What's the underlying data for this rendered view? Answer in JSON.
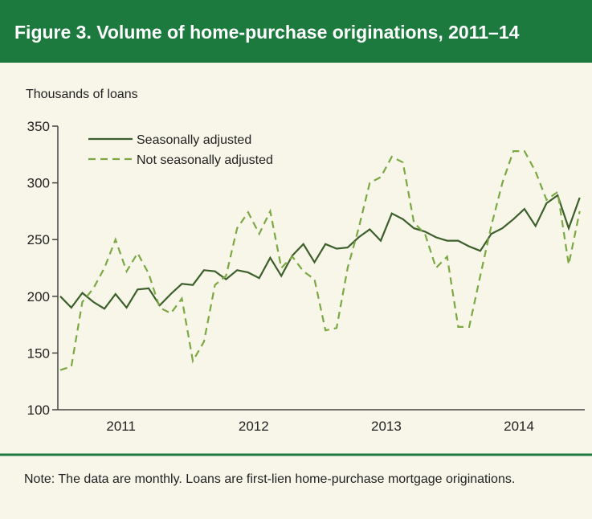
{
  "chart_data": {
    "type": "line",
    "title": "Figure 3. Volume of home-purchase originations, 2011–14",
    "y_axis_label": "Thousands of loans",
    "note": "Note: The data are monthly. Loans are first-lien home-purchase mortgage originations.",
    "categories": [
      null,
      null,
      null,
      null,
      null,
      null,
      "2011",
      null,
      null,
      null,
      null,
      null,
      null,
      null,
      null,
      null,
      null,
      null,
      "2012",
      null,
      null,
      null,
      null,
      null,
      null,
      null,
      null,
      null,
      null,
      null,
      "2013",
      null,
      null,
      null,
      null,
      null,
      null,
      null,
      null,
      null,
      null,
      null,
      "2014",
      null,
      null,
      null,
      null,
      null
    ],
    "series": [
      {
        "name": "Seasonally adjusted",
        "color": "#3d5f2c",
        "dashed": false,
        "values": [
          200,
          190,
          203,
          195,
          189,
          202,
          190,
          206,
          207,
          192,
          202,
          211,
          210,
          223,
          222,
          215,
          223,
          221,
          216,
          234,
          218,
          236,
          246,
          230,
          246,
          242,
          243,
          252,
          259,
          249,
          273,
          268,
          260,
          257,
          252,
          249,
          249,
          244,
          240,
          255,
          260,
          268,
          277,
          262,
          282,
          289,
          260,
          287
        ]
      },
      {
        "name": "Not seasonally adjusted",
        "color": "#7ba843",
        "dashed": true,
        "values": [
          135,
          138,
          195,
          207,
          225,
          250,
          222,
          238,
          220,
          190,
          185,
          198,
          143,
          160,
          210,
          218,
          260,
          274,
          255,
          275,
          225,
          235,
          222,
          215,
          170,
          172,
          225,
          260,
          300,
          305,
          323,
          318,
          265,
          255,
          225,
          235,
          173,
          173,
          218,
          262,
          300,
          328,
          328,
          310,
          285,
          292,
          228,
          275
        ]
      }
    ],
    "ylim": [
      100,
      350
    ],
    "yticks": [
      100,
      150,
      200,
      250,
      300,
      350
    ],
    "legend": "top-left",
    "grid": false
  }
}
